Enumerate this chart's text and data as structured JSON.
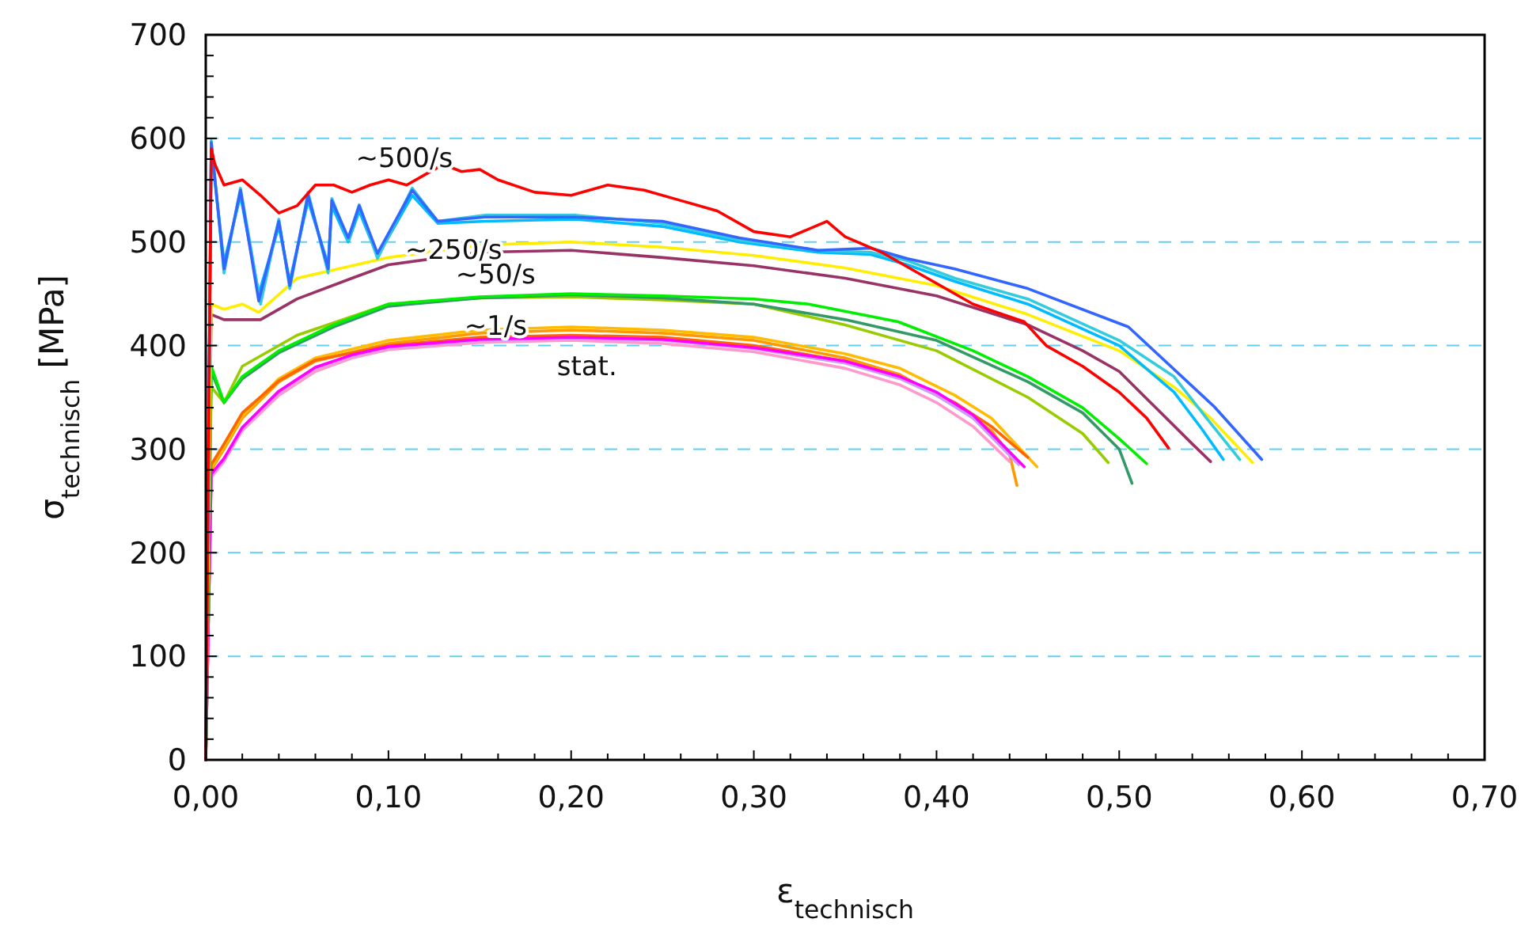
{
  "chart_data": {
    "type": "line",
    "xlabel": "ε$_{technisch}$",
    "ylabel": "σ$_{technisch}$  [MPa]",
    "xlim": [
      0,
      0.7
    ],
    "ylim": [
      0,
      700
    ],
    "xticks": [
      {
        "value": 0,
        "label": "0,00"
      },
      {
        "value": 0.02,
        "label": null
      },
      {
        "value": 0.04,
        "label": null
      },
      {
        "value": 0.06,
        "label": null
      },
      {
        "value": 0.08,
        "label": null
      },
      {
        "value": 0.1,
        "label": "0,10"
      },
      {
        "value": 0.12,
        "label": null
      },
      {
        "value": 0.14,
        "label": null
      },
      {
        "value": 0.16,
        "label": null
      },
      {
        "value": 0.18,
        "label": null
      },
      {
        "value": 0.2,
        "label": "0,20"
      },
      {
        "value": 0.22,
        "label": null
      },
      {
        "value": 0.24,
        "label": null
      },
      {
        "value": 0.26,
        "label": null
      },
      {
        "value": 0.28,
        "label": null
      },
      {
        "value": 0.3,
        "label": "0,30"
      },
      {
        "value": 0.32,
        "label": null
      },
      {
        "value": 0.34,
        "label": null
      },
      {
        "value": 0.36,
        "label": null
      },
      {
        "value": 0.38,
        "label": null
      },
      {
        "value": 0.4,
        "label": "0,40"
      },
      {
        "value": 0.42,
        "label": null
      },
      {
        "value": 0.44,
        "label": null
      },
      {
        "value": 0.46,
        "label": null
      },
      {
        "value": 0.48,
        "label": null
      },
      {
        "value": 0.5,
        "label": "0,50"
      },
      {
        "value": 0.52,
        "label": null
      },
      {
        "value": 0.54,
        "label": null
      },
      {
        "value": 0.56,
        "label": null
      },
      {
        "value": 0.58,
        "label": null
      },
      {
        "value": 0.6,
        "label": "0,60"
      },
      {
        "value": 0.62,
        "label": null
      },
      {
        "value": 0.64,
        "label": null
      },
      {
        "value": 0.66,
        "label": null
      },
      {
        "value": 0.68,
        "label": null
      },
      {
        "value": 0.7,
        "label": "0,70"
      }
    ],
    "yticks": [
      0,
      {
        "value": 20,
        "label": null
      },
      {
        "value": 40,
        "label": null
      },
      {
        "value": 60,
        "label": null
      },
      {
        "value": 80,
        "label": null
      },
      100,
      {
        "value": 120,
        "label": null
      },
      {
        "value": 140,
        "label": null
      },
      {
        "value": 160,
        "label": null
      },
      {
        "value": 180,
        "label": null
      },
      200,
      {
        "value": 220,
        "label": null
      },
      {
        "value": 240,
        "label": null
      },
      {
        "value": 260,
        "label": null
      },
      {
        "value": 280,
        "label": null
      },
      300,
      {
        "value": 320,
        "label": null
      },
      {
        "value": 340,
        "label": null
      },
      {
        "value": 360,
        "label": null
      },
      {
        "value": 380,
        "label": null
      },
      400,
      {
        "value": 420,
        "label": null
      },
      {
        "value": 440,
        "label": null
      },
      {
        "value": 460,
        "label": null
      },
      {
        "value": 480,
        "label": null
      },
      500,
      {
        "value": 520,
        "label": null
      },
      {
        "value": 540,
        "label": null
      },
      {
        "value": 560,
        "label": null
      },
      {
        "value": 580,
        "label": null
      },
      600,
      {
        "value": 620,
        "label": null
      },
      {
        "value": 640,
        "label": null
      },
      {
        "value": 660,
        "label": null
      },
      {
        "value": 680,
        "label": null
      },
      700
    ],
    "grid": "y",
    "marker": "none",
    "line_style": "solid",
    "annotations": [
      {
        "text": "~500/s",
        "x": 0.1,
        "y": 560
      },
      {
        "text": "~250/s",
        "x": 0.127,
        "y": 520
      },
      {
        "text": "~50/s",
        "x": 0.15,
        "y": 497
      },
      {
        "text": "~1/s",
        "x": 0.15,
        "y": 447
      },
      {
        "text": "stat.",
        "x": 0.2,
        "y": 408
      }
    ],
    "series": [
      {
        "color": "#ff9900",
        "x": [
          0,
          0.003,
          0.01,
          0.02,
          0.04,
          0.06,
          0.1,
          0.15,
          0.2,
          0.25,
          0.3,
          0.35,
          0.38,
          0.41,
          0.43,
          0.44,
          0.444
        ],
        "values": [
          0,
          280,
          300,
          330,
          365,
          385,
          402,
          412,
          415,
          412,
          405,
          388,
          372,
          342,
          318,
          295,
          265
        ]
      },
      {
        "color": "#ffbb00",
        "x": [
          0,
          0.003,
          0.01,
          0.02,
          0.04,
          0.06,
          0.1,
          0.15,
          0.2,
          0.25,
          0.3,
          0.35,
          0.38,
          0.41,
          0.43,
          0.455
        ],
        "values": [
          0,
          282,
          302,
          332,
          368,
          388,
          405,
          415,
          418,
          415,
          408,
          392,
          378,
          352,
          330,
          283
        ]
      },
      {
        "color": "#ff6600",
        "x": [
          0,
          0.003,
          0.01,
          0.02,
          0.04,
          0.06,
          0.1,
          0.15,
          0.2,
          0.25,
          0.3,
          0.35,
          0.38,
          0.41,
          0.43,
          0.45
        ],
        "values": [
          0,
          285,
          305,
          335,
          366,
          386,
          400,
          408,
          410,
          408,
          400,
          385,
          370,
          345,
          322,
          292
        ]
      },
      {
        "color": "#ff99cc",
        "x": [
          0,
          0.003,
          0.01,
          0.02,
          0.04,
          0.06,
          0.08,
          0.1,
          0.15,
          0.2,
          0.25,
          0.3,
          0.35,
          0.38,
          0.4,
          0.42,
          0.44
        ],
        "values": [
          0,
          273,
          288,
          318,
          352,
          375,
          388,
          396,
          403,
          405,
          402,
          394,
          378,
          362,
          345,
          322,
          288
        ]
      },
      {
        "color": "#cc99ff",
        "x": [
          0,
          0.003,
          0.01,
          0.02,
          0.04,
          0.06,
          0.08,
          0.1,
          0.15,
          0.2,
          0.25,
          0.3,
          0.35,
          0.38,
          0.4,
          0.42,
          0.445
        ],
        "values": [
          0,
          275,
          290,
          320,
          355,
          378,
          390,
          398,
          405,
          407,
          405,
          397,
          383,
          368,
          352,
          330,
          285
        ]
      },
      {
        "color": "#ff00ff",
        "x": [
          0,
          0.003,
          0.01,
          0.02,
          0.04,
          0.06,
          0.08,
          0.1,
          0.15,
          0.2,
          0.25,
          0.3,
          0.35,
          0.38,
          0.4,
          0.42,
          0.448
        ],
        "values": [
          0,
          276,
          291,
          321,
          356,
          379,
          391,
          399,
          406,
          408,
          406,
          398,
          385,
          370,
          355,
          333,
          283
        ]
      },
      {
        "color": "#99cc00",
        "x": [
          0,
          0.003,
          0.01,
          0.02,
          0.05,
          0.1,
          0.15,
          0.2,
          0.25,
          0.3,
          0.35,
          0.4,
          0.45,
          0.48,
          0.494
        ],
        "values": [
          0,
          360,
          345,
          380,
          410,
          440,
          446,
          447,
          444,
          440,
          420,
          395,
          350,
          315,
          287
        ]
      },
      {
        "color": "#339966",
        "x": [
          0,
          0.003,
          0.01,
          0.02,
          0.04,
          0.07,
          0.1,
          0.15,
          0.2,
          0.25,
          0.3,
          0.35,
          0.4,
          0.45,
          0.48,
          0.5,
          0.507
        ],
        "values": [
          0,
          375,
          345,
          368,
          393,
          418,
          438,
          446,
          449,
          446,
          440,
          425,
          405,
          365,
          335,
          300,
          267
        ]
      },
      {
        "color": "#00ee00",
        "x": [
          0,
          0.003,
          0.01,
          0.02,
          0.04,
          0.07,
          0.1,
          0.15,
          0.2,
          0.25,
          0.3,
          0.33,
          0.379,
          0.42,
          0.45,
          0.48,
          0.5,
          0.515
        ],
        "values": [
          0,
          380,
          345,
          370,
          395,
          420,
          440,
          447,
          450,
          448,
          445,
          440,
          423,
          395,
          370,
          340,
          310,
          286
        ]
      },
      {
        "color": "#993366",
        "x": [
          0,
          0.003,
          0.01,
          0.03,
          0.05,
          0.08,
          0.1,
          0.15,
          0.2,
          0.25,
          0.3,
          0.35,
          0.4,
          0.45,
          0.48,
          0.5,
          0.52,
          0.54,
          0.55
        ],
        "values": [
          0,
          430,
          425,
          425,
          445,
          465,
          478,
          490,
          492,
          485,
          477,
          465,
          448,
          420,
          395,
          375,
          340,
          305,
          288
        ]
      },
      {
        "color": "#ffee00",
        "x": [
          0,
          0.003,
          0.01,
          0.02,
          0.029,
          0.05,
          0.1,
          0.15,
          0.2,
          0.25,
          0.3,
          0.35,
          0.4,
          0.45,
          0.5,
          0.53,
          0.55,
          0.573
        ],
        "values": [
          0,
          440,
          435,
          440,
          432,
          465,
          485,
          497,
          500,
          495,
          487,
          475,
          458,
          430,
          395,
          360,
          330,
          287
        ]
      },
      {
        "color": "#00bbff",
        "x": [
          0,
          0.003,
          0.01,
          0.019,
          0.029,
          0.04,
          0.046,
          0.056,
          0.067,
          0.069,
          0.078,
          0.084,
          0.094,
          0.113,
          0.127,
          0.153,
          0.202,
          0.25,
          0.292,
          0.335,
          0.364,
          0.384,
          0.41,
          0.45,
          0.5,
          0.53,
          0.545,
          0.557
        ],
        "values": [
          0,
          590,
          480,
          545,
          450,
          515,
          462,
          540,
          478,
          535,
          500,
          530,
          486,
          545,
          518,
          520,
          522,
          515,
          500,
          490,
          488,
          478,
          462,
          440,
          400,
          355,
          320,
          290
        ]
      },
      {
        "color": "#33ccdd",
        "x": [
          0,
          0.003,
          0.01,
          0.019,
          0.03,
          0.04,
          0.046,
          0.056,
          0.067,
          0.069,
          0.078,
          0.084,
          0.094,
          0.113,
          0.127,
          0.153,
          0.202,
          0.25,
          0.292,
          0.335,
          0.364,
          0.384,
          0.41,
          0.45,
          0.5,
          0.53,
          0.55,
          0.566
        ],
        "values": [
          0,
          598,
          470,
          552,
          440,
          522,
          455,
          548,
          470,
          542,
          502,
          536,
          484,
          552,
          520,
          526,
          526,
          518,
          502,
          492,
          490,
          482,
          465,
          445,
          405,
          370,
          325,
          290
        ]
      },
      {
        "color": "#3366ff",
        "x": [
          0,
          0.003,
          0.01,
          0.019,
          0.029,
          0.04,
          0.046,
          0.056,
          0.067,
          0.069,
          0.078,
          0.084,
          0.094,
          0.113,
          0.127,
          0.153,
          0.202,
          0.25,
          0.292,
          0.335,
          0.364,
          0.384,
          0.41,
          0.45,
          0.505,
          0.552,
          0.578
        ],
        "values": [
          0,
          596,
          474,
          550,
          443,
          520,
          458,
          545,
          474,
          540,
          504,
          535,
          489,
          550,
          520,
          524,
          524,
          520,
          504,
          492,
          494,
          484,
          474,
          455,
          418,
          341,
          290
        ]
      },
      {
        "color": "#ff0000",
        "x": [
          0,
          0.002,
          0.003,
          0.005,
          0.01,
          0.02,
          0.03,
          0.04,
          0.05,
          0.06,
          0.07,
          0.08,
          0.09,
          0.1,
          0.11,
          0.12,
          0.13,
          0.14,
          0.15,
          0.16,
          0.18,
          0.2,
          0.22,
          0.24,
          0.26,
          0.28,
          0.3,
          0.32,
          0.34,
          0.35,
          0.37,
          0.39,
          0.4,
          0.42,
          0.448,
          0.46,
          0.48,
          0.5,
          0.515,
          0.527
        ],
        "values": [
          0,
          400,
          590,
          575,
          555,
          560,
          545,
          528,
          535,
          555,
          555,
          548,
          555,
          560,
          555,
          565,
          575,
          568,
          570,
          560,
          548,
          545,
          555,
          550,
          540,
          530,
          510,
          505,
          520,
          505,
          490,
          470,
          460,
          440,
          423,
          400,
          380,
          355,
          330,
          301
        ]
      }
    ]
  }
}
